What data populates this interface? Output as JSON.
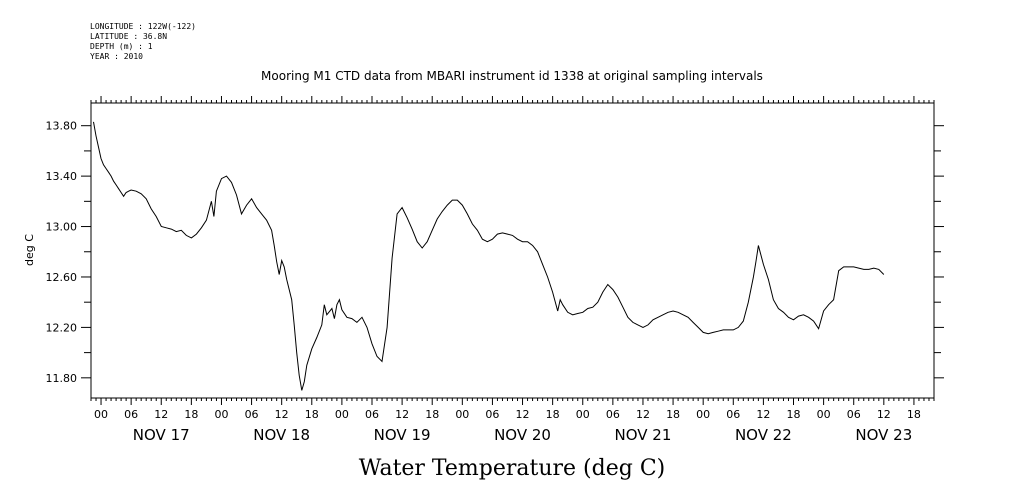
{
  "header": {
    "longitude": "LONGITUDE : 122W(-122)",
    "latitude": "LATITUDE : 36.8N",
    "depth": "DEPTH (m) : 1",
    "year": "YEAR : 2010"
  },
  "chart_data": {
    "type": "line",
    "title": "Mooring M1 CTD data from MBARI instrument id 1338 at original sampling intervals",
    "xlabel": "Water Temperature (deg C)",
    "ylabel": "deg C",
    "ylim": [
      11.64,
      13.98
    ],
    "y_ticks": [
      "13.80",
      "13.40",
      "13.00",
      "12.60",
      "12.20",
      "11.80"
    ],
    "x_range_hours": [
      -2,
      166
    ],
    "hour_ticks": [
      "00",
      "06",
      "12",
      "18",
      "00",
      "06",
      "12",
      "18",
      "00",
      "06",
      "12",
      "18",
      "00",
      "06",
      "12",
      "18",
      "00",
      "06",
      "12",
      "18",
      "00",
      "06",
      "12",
      "18",
      "00",
      "06",
      "12",
      "18"
    ],
    "day_labels": [
      "NOV 17",
      "NOV 18",
      "NOV 19",
      "NOV 20",
      "NOV 21",
      "NOV 22",
      "NOV 23"
    ],
    "grid": false,
    "legend": "none",
    "series": [
      {
        "points": [
          [
            -1.5,
            13.83
          ],
          [
            -1,
            13.72
          ],
          [
            -0.5,
            13.63
          ],
          [
            0,
            13.54
          ],
          [
            0.5,
            13.49
          ],
          [
            1,
            13.46
          ],
          [
            1.5,
            13.43
          ],
          [
            2,
            13.4
          ],
          [
            2.5,
            13.36
          ],
          [
            3,
            13.33
          ],
          [
            3.5,
            13.3
          ],
          [
            4,
            13.27
          ],
          [
            4.5,
            13.24
          ],
          [
            5,
            13.27
          ],
          [
            5.5,
            13.28
          ],
          [
            6,
            13.29
          ],
          [
            7,
            13.28
          ],
          [
            8,
            13.26
          ],
          [
            9,
            13.22
          ],
          [
            10,
            13.14
          ],
          [
            11,
            13.08
          ],
          [
            12,
            13.0
          ],
          [
            13,
            12.99
          ],
          [
            14,
            12.98
          ],
          [
            15,
            12.96
          ],
          [
            16,
            12.97
          ],
          [
            17,
            12.93
          ],
          [
            18,
            12.91
          ],
          [
            19,
            12.94
          ],
          [
            20,
            12.99
          ],
          [
            21,
            13.05
          ],
          [
            22,
            13.2
          ],
          [
            22.5,
            13.08
          ],
          [
            23,
            13.28
          ],
          [
            24,
            13.38
          ],
          [
            25,
            13.4
          ],
          [
            26,
            13.35
          ],
          [
            27,
            13.25
          ],
          [
            28,
            13.1
          ],
          [
            29,
            13.17
          ],
          [
            30,
            13.22
          ],
          [
            31,
            13.15
          ],
          [
            32,
            13.1
          ],
          [
            33,
            13.05
          ],
          [
            34,
            12.97
          ],
          [
            34.5,
            12.85
          ],
          [
            35,
            12.72
          ],
          [
            35.5,
            12.62
          ],
          [
            36,
            12.73
          ],
          [
            36.5,
            12.68
          ],
          [
            37,
            12.58
          ],
          [
            38,
            12.42
          ],
          [
            38.5,
            12.22
          ],
          [
            39,
            12.0
          ],
          [
            39.5,
            11.82
          ],
          [
            40,
            11.7
          ],
          [
            40.5,
            11.77
          ],
          [
            41,
            11.9
          ],
          [
            42,
            12.03
          ],
          [
            43,
            12.12
          ],
          [
            44,
            12.22
          ],
          [
            44.5,
            12.38
          ],
          [
            45,
            12.3
          ],
          [
            46,
            12.35
          ],
          [
            46.5,
            12.27
          ],
          [
            47,
            12.38
          ],
          [
            47.5,
            12.42
          ],
          [
            48,
            12.34
          ],
          [
            49,
            12.28
          ],
          [
            50,
            12.27
          ],
          [
            51,
            12.24
          ],
          [
            52,
            12.28
          ],
          [
            53,
            12.2
          ],
          [
            54,
            12.07
          ],
          [
            55,
            11.97
          ],
          [
            56,
            11.93
          ],
          [
            57,
            12.2
          ],
          [
            58,
            12.75
          ],
          [
            59,
            13.1
          ],
          [
            60,
            13.15
          ],
          [
            61,
            13.07
          ],
          [
            62,
            12.98
          ],
          [
            63,
            12.88
          ],
          [
            64,
            12.83
          ],
          [
            65,
            12.88
          ],
          [
            66,
            12.97
          ],
          [
            67,
            13.06
          ],
          [
            68,
            13.12
          ],
          [
            69,
            13.17
          ],
          [
            70,
            13.21
          ],
          [
            71,
            13.21
          ],
          [
            72,
            13.17
          ],
          [
            73,
            13.1
          ],
          [
            74,
            13.02
          ],
          [
            75,
            12.97
          ],
          [
            76,
            12.9
          ],
          [
            77,
            12.88
          ],
          [
            78,
            12.9
          ],
          [
            79,
            12.94
          ],
          [
            80,
            12.95
          ],
          [
            81,
            12.94
          ],
          [
            82,
            12.93
          ],
          [
            83,
            12.9
          ],
          [
            84,
            12.88
          ],
          [
            85,
            12.88
          ],
          [
            86,
            12.85
          ],
          [
            87,
            12.8
          ],
          [
            88,
            12.7
          ],
          [
            89,
            12.6
          ],
          [
            90,
            12.48
          ],
          [
            91,
            12.33
          ],
          [
            91.5,
            12.42
          ],
          [
            92,
            12.38
          ],
          [
            93,
            12.32
          ],
          [
            94,
            12.3
          ],
          [
            95,
            12.31
          ],
          [
            96,
            12.32
          ],
          [
            97,
            12.35
          ],
          [
            98,
            12.36
          ],
          [
            99,
            12.4
          ],
          [
            100,
            12.48
          ],
          [
            101,
            12.54
          ],
          [
            102,
            12.5
          ],
          [
            103,
            12.44
          ],
          [
            104,
            12.36
          ],
          [
            105,
            12.28
          ],
          [
            106,
            12.24
          ],
          [
            107,
            12.22
          ],
          [
            108,
            12.2
          ],
          [
            109,
            12.22
          ],
          [
            110,
            12.26
          ],
          [
            111,
            12.28
          ],
          [
            112,
            12.3
          ],
          [
            113,
            12.32
          ],
          [
            114,
            12.33
          ],
          [
            115,
            12.32
          ],
          [
            116,
            12.3
          ],
          [
            117,
            12.28
          ],
          [
            118,
            12.24
          ],
          [
            119,
            12.2
          ],
          [
            120,
            12.16
          ],
          [
            121,
            12.15
          ],
          [
            122,
            12.16
          ],
          [
            123,
            12.17
          ],
          [
            124,
            12.18
          ],
          [
            125,
            12.18
          ],
          [
            126,
            12.18
          ],
          [
            127,
            12.2
          ],
          [
            128,
            12.25
          ],
          [
            129,
            12.4
          ],
          [
            130,
            12.6
          ],
          [
            130.5,
            12.72
          ],
          [
            131,
            12.85
          ],
          [
            132,
            12.7
          ],
          [
            133,
            12.58
          ],
          [
            134,
            12.42
          ],
          [
            135,
            12.35
          ],
          [
            136,
            12.32
          ],
          [
            137,
            12.28
          ],
          [
            138,
            12.26
          ],
          [
            139,
            12.29
          ],
          [
            140,
            12.3
          ],
          [
            141,
            12.28
          ],
          [
            142,
            12.25
          ],
          [
            143,
            12.19
          ],
          [
            144,
            12.33
          ],
          [
            145,
            12.38
          ],
          [
            146,
            12.42
          ],
          [
            147,
            12.65
          ],
          [
            148,
            12.68
          ],
          [
            149,
            12.68
          ],
          [
            150,
            12.68
          ],
          [
            151,
            12.67
          ],
          [
            152,
            12.66
          ],
          [
            153,
            12.66
          ],
          [
            154,
            12.67
          ],
          [
            155,
            12.66
          ],
          [
            156,
            12.62
          ]
        ]
      }
    ]
  }
}
